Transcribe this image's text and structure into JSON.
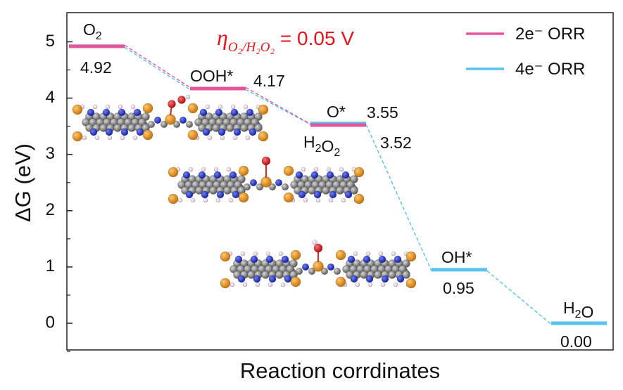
{
  "chart_data": {
    "type": "line",
    "chart_kind": "free energy diagram",
    "xlabel": "Reaction corrdinates",
    "ylabel": "ΔG (eV)",
    "ylim": [
      -0.5,
      5.5
    ],
    "yticks": [
      0,
      1,
      2,
      3,
      4,
      5
    ],
    "grid": false,
    "legend_position": "top-right",
    "annotation": {
      "eta": "η",
      "subscript": "O₂/H₂O₂",
      "value": " = 0.05 V",
      "color": "#e8141c"
    },
    "series": [
      {
        "name": "2e⁻ ORR",
        "color": "#e8549a",
        "states": [
          {
            "species": "O₂",
            "value": 4.92
          },
          {
            "species": "OOH*",
            "value": 4.17
          },
          {
            "species": "H₂O₂",
            "value": 3.52
          }
        ]
      },
      {
        "name": "4e⁻ ORR",
        "color": "#57c3ee",
        "states": [
          {
            "species": "O₂",
            "value": 4.92
          },
          {
            "species": "OOH*",
            "value": 4.17
          },
          {
            "species": "O*",
            "value": 3.55
          },
          {
            "species": "OH*",
            "value": 0.95
          },
          {
            "species": "H₂O",
            "value": 0.0
          }
        ]
      }
    ],
    "level_labels": [
      {
        "species": "O₂",
        "value_text": "4.92"
      },
      {
        "species": "OOH*",
        "value_text": "4.17"
      },
      {
        "species": "O*",
        "value_text": "3.55"
      },
      {
        "species": "H₂O₂",
        "value_text": "3.52"
      },
      {
        "species": "OH*",
        "value_text": "0.95"
      },
      {
        "species": "H₂O",
        "value_text": "0.00"
      }
    ]
  },
  "structures": [
    {
      "adsorbate": "OOH",
      "icon": "molecular-structure-icon"
    },
    {
      "adsorbate": "O",
      "icon": "molecular-structure-icon"
    },
    {
      "adsorbate": "OH",
      "icon": "molecular-structure-icon"
    }
  ]
}
